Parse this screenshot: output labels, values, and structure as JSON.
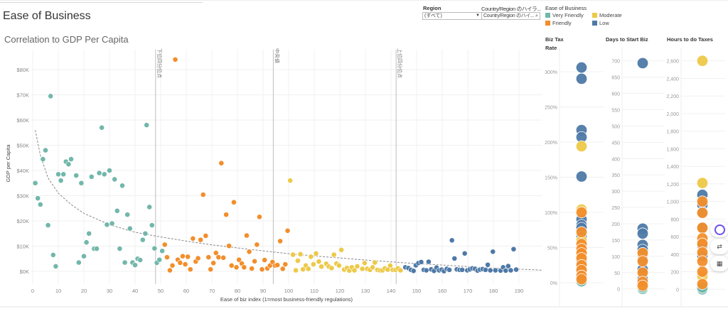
{
  "header": {
    "title": "Ease of Business",
    "subtitle": "Correlation to GDP Per Capita"
  },
  "filters": {
    "region": {
      "label": "Region",
      "value": "(すべて)"
    },
    "country": {
      "label": "Country/Region のハイラ...",
      "placeholder": "Country/Region のハイ..."
    }
  },
  "legend": {
    "title": "Ease of Business",
    "items": [
      {
        "label": "Very Friendly",
        "color": "#72b7ab"
      },
      {
        "label": "Moderate",
        "color": "#edc948"
      },
      {
        "label": "Friendly",
        "color": "#f28e2b"
      },
      {
        "label": "Low",
        "color": "#4e79a7"
      }
    ]
  },
  "chart_data": [
    {
      "type": "scatter",
      "title": "Correlation to GDP Per Capita",
      "xlabel": "Ease of biz index (1=most business-friendly regulations)",
      "ylabel": "GDP per Capita",
      "xlim": [
        0,
        199
      ],
      "ylim": [
        -5,
        88
      ],
      "x_ticks": [
        "0",
        "10",
        "20",
        "30",
        "40",
        "50",
        "60",
        "70",
        "80",
        "90",
        "100",
        "110",
        "120",
        "130",
        "140",
        "150",
        "160",
        "170",
        "180",
        "190"
      ],
      "y_ticks": [
        "$0K",
        "$10K",
        "$20K",
        "$30K",
        "$40K",
        "$50K",
        "$60K",
        "$70K",
        "$80K"
      ],
      "y_unit": "thousand USD",
      "grid": true,
      "reference_lines": [
        {
          "x": 48,
          "label": "下位四分位点"
        },
        {
          "x": 94,
          "label": "中央値"
        },
        {
          "x": 142,
          "label": "上位四分位点"
        }
      ],
      "trend": [
        [
          1,
          56
        ],
        [
          3,
          46
        ],
        [
          6,
          37
        ],
        [
          10,
          31
        ],
        [
          15,
          26.5
        ],
        [
          20,
          23
        ],
        [
          30,
          18.5
        ],
        [
          40,
          15.5
        ],
        [
          48,
          14
        ],
        [
          60,
          12
        ],
        [
          70,
          10.5
        ],
        [
          85,
          8.7
        ],
        [
          100,
          7
        ],
        [
          115,
          5.7
        ],
        [
          130,
          4.5
        ],
        [
          145,
          3.4
        ],
        [
          160,
          2.5
        ],
        [
          180,
          1.3
        ],
        [
          199,
          0.5
        ]
      ],
      "series": [
        {
          "name": "Very Friendly",
          "points": [
            [
              1,
              35
            ],
            [
              2,
              29
            ],
            [
              3,
              26.5
            ],
            [
              4,
              44.5
            ],
            [
              5,
              48
            ],
            [
              6,
              18.3
            ],
            [
              7,
              69.5
            ],
            [
              8,
              6.5
            ],
            [
              9,
              2
            ],
            [
              10,
              38.5
            ],
            [
              11,
              36
            ],
            [
              12,
              38.5
            ],
            [
              13,
              43.5
            ],
            [
              14,
              42.5
            ],
            [
              15,
              44.5
            ],
            [
              17,
              38
            ],
            [
              18,
              3.5
            ],
            [
              19,
              35
            ],
            [
              20,
              6
            ],
            [
              21,
              11.5
            ],
            [
              22,
              15
            ],
            [
              23,
              37.5
            ],
            [
              24,
              9
            ],
            [
              25,
              9
            ],
            [
              26,
              39
            ],
            [
              27,
              57
            ],
            [
              28,
              38.5
            ],
            [
              29,
              18.5
            ],
            [
              30,
              40
            ],
            [
              31,
              19
            ],
            [
              32,
              36.5
            ],
            [
              33,
              24
            ],
            [
              34,
              9
            ],
            [
              35,
              34
            ],
            [
              36,
              3.5
            ],
            [
              37,
              22.5
            ],
            [
              38,
              17
            ],
            [
              39,
              3.5
            ],
            [
              40,
              2.5
            ],
            [
              41,
              5
            ],
            [
              42,
              4.5
            ],
            [
              43,
              12.5
            ],
            [
              44,
              15
            ],
            [
              44.5,
              58
            ],
            [
              45.6,
              25.5
            ],
            [
              46.6,
              18.3
            ],
            [
              47.6,
              9.1
            ],
            [
              48.5,
              3.4
            ],
            [
              49.5,
              4.6
            ],
            [
              50.6,
              8.1
            ]
          ]
        },
        {
          "name": "Friendly",
          "points": [
            [
              51.6,
              10.6
            ],
            [
              52.5,
              5.6
            ],
            [
              53.6,
              0.4
            ],
            [
              54.6,
              2.3
            ],
            [
              55.7,
              84
            ],
            [
              56.7,
              4.6
            ],
            [
              57.6,
              3.4
            ],
            [
              58.6,
              6
            ],
            [
              59.6,
              2.8
            ],
            [
              60.6,
              5.8
            ],
            [
              61.6,
              0.8
            ],
            [
              62.6,
              13
            ],
            [
              63.7,
              3.9
            ],
            [
              64.6,
              5.2
            ],
            [
              65.6,
              12.5
            ],
            [
              66.6,
              30.4
            ],
            [
              67.6,
              14.1
            ],
            [
              68.7,
              5.6
            ],
            [
              69.5,
              0.8
            ],
            [
              70.6,
              3.3
            ],
            [
              71.6,
              7.3
            ],
            [
              72.6,
              5.6
            ],
            [
              73.7,
              42.9
            ],
            [
              74.5,
              5.4
            ],
            [
              75.6,
              22.5
            ],
            [
              76.7,
              10.1
            ],
            [
              77.7,
              2.3
            ],
            [
              78.6,
              27.4
            ],
            [
              79.6,
              1.6
            ],
            [
              80.6,
              4.6
            ],
            [
              81.7,
              3.1
            ],
            [
              82.6,
              1.6
            ],
            [
              83.6,
              14.2
            ],
            [
              84.6,
              7.8
            ],
            [
              85.6,
              1.1
            ],
            [
              86.7,
              4
            ],
            [
              87.6,
              10.6
            ],
            [
              88.6,
              21.6
            ],
            [
              89.6,
              0.8
            ],
            [
              90.6,
              4.5
            ],
            [
              91.7,
              1.2
            ],
            [
              92.7,
              2.3
            ],
            [
              93.7,
              3.7
            ],
            [
              94.7,
              2.3
            ],
            [
              95.6,
              2.5
            ],
            [
              96.7,
              12
            ],
            [
              97.7,
              1
            ],
            [
              98.7,
              2.8
            ],
            [
              99.6,
              16.1
            ]
          ]
        },
        {
          "name": "Moderate",
          "points": [
            [
              100.6,
              36
            ],
            [
              101.7,
              6.6
            ],
            [
              102.8,
              0.4
            ],
            [
              103.6,
              4.2
            ],
            [
              104.6,
              6.8
            ],
            [
              105.6,
              0.8
            ],
            [
              106.7,
              2.3
            ],
            [
              107.7,
              1
            ],
            [
              108.7,
              5.8
            ],
            [
              109.7,
              2.8
            ],
            [
              110.7,
              7.1
            ],
            [
              111.8,
              3.9
            ],
            [
              112.8,
              1.9
            ],
            [
              114.7,
              3
            ],
            [
              115.7,
              1.9
            ],
            [
              116.8,
              1.3
            ],
            [
              117.7,
              6.6
            ],
            [
              118.7,
              3.1
            ],
            [
              119.7,
              2.3
            ],
            [
              120.6,
              8.5
            ],
            [
              121.7,
              0.7
            ],
            [
              122.8,
              1.3
            ],
            [
              123.7,
              0.3
            ],
            [
              124.7,
              1.6
            ],
            [
              125.7,
              0.4
            ],
            [
              126.8,
              2
            ],
            [
              128.8,
              1
            ],
            [
              129.7,
              3.3
            ],
            [
              130.7,
              1
            ],
            [
              131.8,
              0.6
            ],
            [
              132.8,
              1.6
            ],
            [
              133.7,
              3.5
            ],
            [
              134.7,
              0.6
            ],
            [
              135.7,
              0.4
            ],
            [
              136.7,
              0.4
            ],
            [
              137.6,
              1.2
            ],
            [
              138.7,
              0.7
            ],
            [
              139.7,
              2.3
            ],
            [
              140.7,
              0.6
            ],
            [
              141.8,
              0.6
            ],
            [
              142.7,
              1.2
            ],
            [
              143.7,
              0.4
            ]
          ]
        },
        {
          "name": "Low",
          "points": [
            [
              145.6,
              1.6
            ],
            [
              146.8,
              1.3
            ],
            [
              147.8,
              0.6
            ],
            [
              148.8,
              0.2
            ],
            [
              149.7,
              2.4
            ],
            [
              150.7,
              3.3
            ],
            [
              151.8,
              3.7
            ],
            [
              152.8,
              0.6
            ],
            [
              153.8,
              0.4
            ],
            [
              154.7,
              3.8
            ],
            [
              155.7,
              0.8
            ],
            [
              156.8,
              0.2
            ],
            [
              157.8,
              1.5
            ],
            [
              158.8,
              0.4
            ],
            [
              159.8,
              0.7
            ],
            [
              160.7,
              0.1
            ],
            [
              161.8,
              1
            ],
            [
              162.8,
              0.6
            ],
            [
              163.8,
              12.3
            ],
            [
              164.8,
              5.1
            ],
            [
              165.7,
              0.8
            ],
            [
              166.8,
              0.6
            ],
            [
              167.8,
              0.6
            ],
            [
              168.8,
              7.1
            ],
            [
              169.8,
              0.4
            ],
            [
              170.8,
              0.8
            ],
            [
              171.8,
              1.2
            ],
            [
              172.8,
              1
            ],
            [
              173.8,
              0.3
            ],
            [
              174.8,
              0.7
            ],
            [
              175.8,
              0.9
            ],
            [
              176.9,
              0.6
            ],
            [
              177.8,
              2.6
            ],
            [
              178.8,
              0.4
            ],
            [
              179.8,
              7.8
            ],
            [
              180.8,
              0.4
            ],
            [
              182.8,
              0.3
            ],
            [
              183.8,
              1.6
            ],
            [
              184.8,
              0.3
            ],
            [
              185.8,
              2.1
            ],
            [
              186.8,
              0.4
            ],
            [
              187.9,
              8.8
            ],
            [
              188.9,
              0.7
            ]
          ]
        }
      ]
    },
    {
      "type": "scatter",
      "title": "Biz Tax Rate",
      "unit": "%",
      "ylim": [
        0,
        310
      ],
      "y_ticks": [
        "0%",
        "50%",
        "100%",
        "150%",
        "200%",
        "250%",
        "300%"
      ],
      "series": [
        {
          "name": "Very Friendly",
          "values": [
            2,
            8
          ]
        },
        {
          "name": "Low",
          "values": [
            306,
            290,
            217,
            207,
            151,
            90,
            82,
            78,
            65,
            58,
            45,
            30,
            20,
            10
          ]
        },
        {
          "name": "Moderate",
          "values": [
            194,
            104,
            60,
            35
          ]
        },
        {
          "name": "Friendly",
          "values": [
            100,
            72,
            55,
            48,
            42,
            35,
            25,
            18,
            10,
            5
          ]
        }
      ]
    },
    {
      "type": "scatter",
      "title": "Days to Start Biz",
      "ylim": [
        0,
        720
      ],
      "y_ticks": [
        "0",
        "50",
        "100",
        "150",
        "200",
        "250",
        "300",
        "350",
        "400",
        "450",
        "500",
        "550",
        "600",
        "650",
        "700"
      ],
      "series": [
        {
          "name": "Very Friendly",
          "values": [
            0,
            5
          ]
        },
        {
          "name": "Moderate",
          "values": [
            15,
            60
          ]
        },
        {
          "name": "Low",
          "values": [
            693,
            185,
            170,
            135,
            120,
            90,
            60,
            30
          ]
        },
        {
          "name": "Friendly",
          "values": [
            110,
            85,
            50,
            22,
            10
          ]
        }
      ]
    },
    {
      "type": "scatter",
      "title": "Hours to do Taxes",
      "ylim": [
        0,
        2700
      ],
      "y_ticks": [
        "0",
        "200",
        "400",
        "600",
        "800",
        "1,000",
        "1,200",
        "1,400",
        "1,600",
        "1,800",
        "2,000",
        "2,200",
        "2,400",
        "2,600"
      ],
      "series": [
        {
          "name": "Very Friendly",
          "values": [
            0,
            20
          ]
        },
        {
          "name": "Moderate",
          "values": [
            2600,
            1210,
            150
          ]
        },
        {
          "name": "Low",
          "values": [
            1075,
            960,
            880,
            700,
            500,
            380
          ]
        },
        {
          "name": "Friendly",
          "values": [
            1000,
            870,
            700,
            580,
            520,
            420,
            320,
            200,
            60
          ]
        }
      ]
    }
  ]
}
